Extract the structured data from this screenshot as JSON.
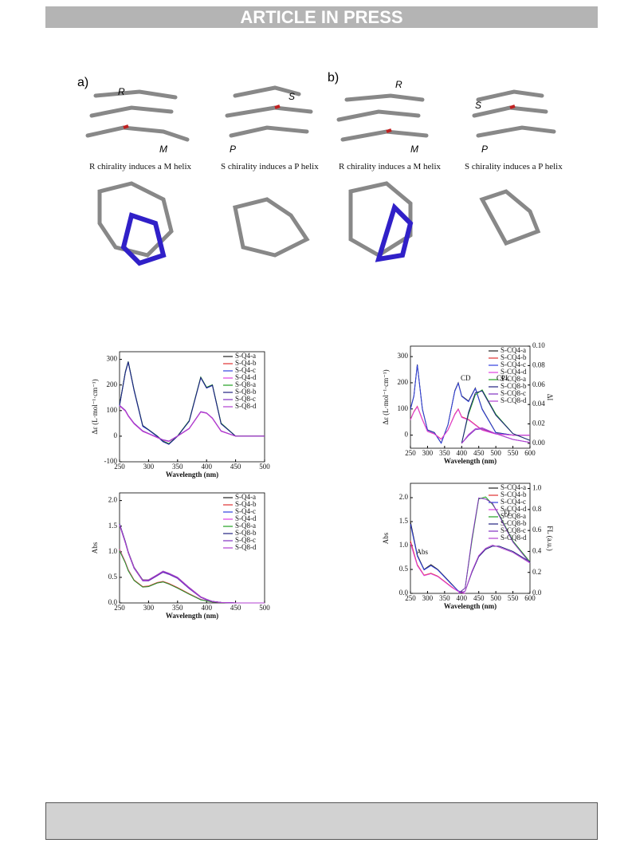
{
  "header": {
    "title": "ARTICLE IN PRESS"
  },
  "figure": {
    "panels": [
      {
        "label": "a)",
        "marks": [
          "R",
          "M",
          "P",
          "S"
        ],
        "captions": [
          "R chirality induces a M helix",
          "S chirality induces a P helix"
        ]
      },
      {
        "label": "b)",
        "marks": [
          "R",
          "M",
          "P",
          "S"
        ],
        "captions": [
          "R chirality induces a M helix",
          "S chirality induces a P helix"
        ]
      }
    ]
  },
  "chart_data": [
    {
      "type": "line",
      "ylabel": "Δε (L·mol⁻¹·cm⁻¹)",
      "xlabel": "Wavelength (nm)",
      "x": [
        250,
        260,
        265,
        275,
        290,
        300,
        315,
        325,
        335,
        350,
        370,
        390,
        400,
        410,
        425,
        450,
        475,
        500
      ],
      "xlim": [
        250,
        500
      ],
      "xticks": [
        250,
        300,
        350,
        400,
        450,
        500
      ],
      "ylim": [
        -100,
        330
      ],
      "yticks": [
        -100,
        0,
        100,
        200,
        300
      ],
      "series": [
        {
          "name": "S-Q4-a",
          "color": "#222222",
          "values": [
            120,
            250,
            290,
            180,
            40,
            25,
            0,
            -20,
            -30,
            0,
            60,
            230,
            190,
            200,
            50,
            0,
            0,
            0
          ]
        },
        {
          "name": "S-Q4-b",
          "color": "#e03030",
          "values": [
            120,
            100,
            80,
            50,
            20,
            10,
            -5,
            -15,
            -20,
            0,
            30,
            95,
            90,
            70,
            20,
            0,
            0,
            0
          ]
        },
        {
          "name": "S-Q4-c",
          "color": "#3040e0",
          "values": [
            118,
            248,
            288,
            178,
            38,
            24,
            -2,
            -22,
            -32,
            0,
            58,
            228,
            188,
            198,
            48,
            0,
            0,
            0
          ]
        },
        {
          "name": "S-Q4-d",
          "color": "#e040e0",
          "values": [
            118,
            98,
            78,
            48,
            18,
            9,
            -6,
            -16,
            -21,
            0,
            29,
            94,
            89,
            69,
            19,
            0,
            0,
            0
          ]
        },
        {
          "name": "S-Q8-a",
          "color": "#20a020",
          "values": [
            122,
            252,
            292,
            182,
            42,
            26,
            1,
            -19,
            -29,
            1,
            61,
            231,
            191,
            201,
            51,
            0,
            0,
            0
          ]
        },
        {
          "name": "S-Q8-b",
          "color": "#202080",
          "values": [
            121,
            251,
            291,
            181,
            41,
            25,
            0,
            -21,
            -31,
            0,
            59,
            229,
            189,
            199,
            49,
            0,
            0,
            0
          ]
        },
        {
          "name": "S-Q8-c",
          "color": "#8030c0",
          "values": [
            121,
            101,
            81,
            51,
            21,
            11,
            -4,
            -14,
            -19,
            1,
            31,
            96,
            91,
            71,
            21,
            0,
            0,
            0
          ]
        },
        {
          "name": "S-Q8-d",
          "color": "#b040d0",
          "values": [
            119,
            99,
            79,
            49,
            19,
            10,
            -5,
            -15,
            -20,
            0,
            30,
            95,
            90,
            70,
            20,
            0,
            0,
            0
          ]
        }
      ]
    },
    {
      "type": "line",
      "ylabel": "Abs",
      "xlabel": "Wavelength (nm)",
      "x": [
        250,
        260,
        265,
        275,
        290,
        300,
        315,
        325,
        335,
        350,
        370,
        390,
        400,
        410,
        425,
        450,
        475,
        500
      ],
      "xlim": [
        250,
        500
      ],
      "xticks": [
        250,
        300,
        350,
        400,
        450,
        500
      ],
      "ylim": [
        0,
        2.15
      ],
      "yticks": [
        {
          "value": 0,
          "label": "0.0"
        },
        {
          "value": 0.5,
          "label": "0.5"
        },
        {
          "value": 1,
          "label": "1.0"
        },
        {
          "value": 1.5,
          "label": "1.5"
        },
        {
          "value": 2,
          "label": "2.0"
        }
      ],
      "series": [
        {
          "name": "S-Q4-a",
          "color": "#222222",
          "values": [
            1.55,
            1.2,
            1.0,
            0.7,
            0.45,
            0.45,
            0.55,
            0.62,
            0.58,
            0.5,
            0.3,
            0.12,
            0.07,
            0.03,
            0.01,
            0,
            0,
            0
          ]
        },
        {
          "name": "S-Q4-b",
          "color": "#e03030",
          "values": [
            1.05,
            0.8,
            0.65,
            0.45,
            0.32,
            0.33,
            0.4,
            0.42,
            0.38,
            0.3,
            0.18,
            0.07,
            0.04,
            0.02,
            0.01,
            0,
            0,
            0
          ]
        },
        {
          "name": "S-Q4-c",
          "color": "#3040e0",
          "values": [
            1.54,
            1.19,
            0.99,
            0.69,
            0.44,
            0.44,
            0.54,
            0.61,
            0.57,
            0.49,
            0.29,
            0.11,
            0.07,
            0.03,
            0.01,
            0,
            0,
            0
          ]
        },
        {
          "name": "S-Q4-d",
          "color": "#e040e0",
          "values": [
            1.04,
            0.79,
            0.64,
            0.44,
            0.31,
            0.32,
            0.39,
            0.41,
            0.37,
            0.29,
            0.17,
            0.07,
            0.04,
            0.02,
            0.01,
            0,
            0,
            0
          ]
        },
        {
          "name": "S-Q8-a",
          "color": "#20a020",
          "values": [
            1.02,
            0.78,
            0.63,
            0.44,
            0.31,
            0.32,
            0.39,
            0.41,
            0.37,
            0.29,
            0.17,
            0.06,
            0.04,
            0.02,
            0.01,
            0,
            0,
            0
          ]
        },
        {
          "name": "S-Q8-b",
          "color": "#202080",
          "values": [
            1.53,
            1.18,
            0.98,
            0.68,
            0.44,
            0.44,
            0.54,
            0.6,
            0.56,
            0.48,
            0.28,
            0.11,
            0.06,
            0.03,
            0.01,
            0,
            0,
            0
          ]
        },
        {
          "name": "S-Q8-c",
          "color": "#8030c0",
          "values": [
            1.52,
            1.17,
            0.98,
            0.68,
            0.43,
            0.43,
            0.53,
            0.6,
            0.56,
            0.48,
            0.28,
            0.11,
            0.06,
            0.03,
            0.01,
            0,
            0,
            0
          ]
        },
        {
          "name": "S-Q8-d",
          "color": "#b040d0",
          "values": [
            1.53,
            1.18,
            0.99,
            0.69,
            0.44,
            0.45,
            0.55,
            0.62,
            0.58,
            0.5,
            0.3,
            0.12,
            0.07,
            0.03,
            0.01,
            0,
            0,
            0
          ]
        }
      ]
    },
    {
      "type": "line",
      "ylabel": "Δε (L·mol⁻¹·cm⁻¹)",
      "y2label": "ΔI",
      "xlabel": "Wavelength (nm)",
      "annotations": [
        "CD",
        "CPL"
      ],
      "x": [
        250,
        260,
        270,
        285,
        300,
        320,
        340,
        360,
        380,
        390,
        400,
        420,
        440,
        460,
        500,
        550,
        600
      ],
      "xlim": [
        250,
        600
      ],
      "xticks": [
        250,
        300,
        350,
        400,
        450,
        500,
        550,
        600
      ],
      "ylim": [
        -50,
        340
      ],
      "yticks": [
        0,
        100,
        200,
        300
      ],
      "y2lim": [
        -0.005,
        0.1
      ],
      "y2ticks": [
        {
          "value": 0,
          "label": "0.00"
        },
        {
          "value": 0.02,
          "label": "0.02"
        },
        {
          "value": 0.04,
          "label": "0.04"
        },
        {
          "value": 0.06,
          "label": "0.06"
        },
        {
          "value": 0.08,
          "label": "0.08"
        },
        {
          "value": 0.1,
          "label": "0.10"
        }
      ],
      "series": [
        {
          "name": "S-CQ4-a",
          "color": "#222222",
          "values": [
            100,
            150,
            270,
            100,
            20,
            10,
            -30,
            40,
            170,
            200,
            150,
            130,
            180,
            100,
            10,
            0,
            0
          ]
        },
        {
          "name": "S-CQ4-b",
          "color": "#e03030",
          "values": [
            60,
            90,
            110,
            60,
            15,
            5,
            -15,
            20,
            80,
            100,
            70,
            60,
            40,
            20,
            5,
            0,
            0
          ]
        },
        {
          "name": "S-CQ4-c",
          "color": "#3040e0",
          "values": [
            98,
            148,
            268,
            98,
            19,
            9,
            -31,
            39,
            168,
            198,
            148,
            128,
            178,
            98,
            9,
            0,
            0
          ]
        },
        {
          "name": "S-CQ4-d",
          "color": "#e040e0",
          "values": [
            58,
            88,
            108,
            58,
            14,
            4,
            -16,
            19,
            78,
            98,
            68,
            58,
            38,
            19,
            4,
            0,
            0
          ]
        },
        {
          "name": "S-CQ8-a",
          "color": "#20a020",
          "axis": "y2",
          "values": [
            null,
            null,
            null,
            null,
            null,
            null,
            null,
            null,
            null,
            null,
            0,
            0.03,
            0.05,
            0.055,
            0.03,
            0.01,
            0.003
          ]
        },
        {
          "name": "S-CQ8-b",
          "color": "#202080",
          "axis": "y2",
          "values": [
            null,
            null,
            null,
            null,
            null,
            null,
            null,
            null,
            null,
            null,
            0,
            0.032,
            0.052,
            0.054,
            0.029,
            0.01,
            0.003
          ]
        },
        {
          "name": "S-CQ8-c",
          "color": "#8030c0",
          "axis": "y2",
          "values": [
            null,
            null,
            null,
            null,
            null,
            null,
            null,
            null,
            null,
            null,
            0,
            0.008,
            0.014,
            0.015,
            0.01,
            0.004,
            0.001
          ]
        },
        {
          "name": "S-CQ8-d",
          "color": "#b040d0",
          "axis": "y2",
          "values": [
            null,
            null,
            null,
            null,
            null,
            null,
            null,
            null,
            null,
            null,
            0,
            0.009,
            0.015,
            0.016,
            0.01,
            0.004,
            0.001
          ]
        }
      ]
    },
    {
      "type": "line",
      "ylabel": "Abs",
      "y2label": "FL (a.u.)",
      "xlabel": "Wavelength (nm)",
      "annotations": [
        "Abs",
        "FL"
      ],
      "x": [
        250,
        270,
        290,
        310,
        330,
        350,
        370,
        390,
        410,
        430,
        450,
        470,
        490,
        510,
        550,
        600
      ],
      "xlim": [
        250,
        600
      ],
      "xticks": [
        250,
        300,
        350,
        400,
        450,
        500,
        550,
        600
      ],
      "ylim": [
        0,
        2.3
      ],
      "yticks": [
        {
          "value": 0,
          "label": "0.0"
        },
        {
          "value": 0.5,
          "label": "0.5"
        },
        {
          "value": 1,
          "label": "1.0"
        },
        {
          "value": 1.5,
          "label": "1.5"
        },
        {
          "value": 2,
          "label": "2.0"
        }
      ],
      "y2lim": [
        0,
        1.05
      ],
      "y2ticks": [
        {
          "value": 0,
          "label": "0.0"
        },
        {
          "value": 0.2,
          "label": "0.2"
        },
        {
          "value": 0.4,
          "label": "0.4"
        },
        {
          "value": 0.6,
          "label": "0.6"
        },
        {
          "value": 0.8,
          "label": "0.8"
        },
        {
          "value": 1,
          "label": "1.0"
        }
      ],
      "series": [
        {
          "name": "S-CQ4-a",
          "color": "#222222",
          "values": [
            1.5,
            0.8,
            0.5,
            0.6,
            0.5,
            0.35,
            0.2,
            0.05,
            0,
            null,
            null,
            null,
            null,
            null,
            null,
            null
          ]
        },
        {
          "name": "S-CQ4-b",
          "color": "#e03030",
          "values": [
            1.1,
            0.6,
            0.38,
            0.42,
            0.36,
            0.25,
            0.14,
            0.04,
            0,
            null,
            null,
            null,
            null,
            null,
            null,
            null
          ]
        },
        {
          "name": "S-CQ4-c",
          "color": "#3040e0",
          "values": [
            1.45,
            0.78,
            0.49,
            0.58,
            0.49,
            0.34,
            0.19,
            0.05,
            0,
            null,
            null,
            null,
            null,
            null,
            null,
            null
          ]
        },
        {
          "name": "S-CQ4-d",
          "color": "#e040e0",
          "values": [
            1.05,
            0.58,
            0.37,
            0.41,
            0.35,
            0.24,
            0.13,
            0.04,
            0,
            null,
            null,
            null,
            null,
            null,
            null,
            null
          ]
        },
        {
          "name": "S-CQ8-a",
          "color": "#20a020",
          "axis": "y2",
          "values": [
            null,
            null,
            null,
            null,
            null,
            null,
            null,
            0,
            0.05,
            0.5,
            0.9,
            0.92,
            0.85,
            0.75,
            0.5,
            0.3
          ]
        },
        {
          "name": "S-CQ8-b",
          "color": "#202080",
          "axis": "y2",
          "values": [
            null,
            null,
            null,
            null,
            null,
            null,
            null,
            0,
            0.02,
            0.2,
            0.35,
            0.42,
            0.45,
            0.45,
            0.4,
            0.3
          ]
        },
        {
          "name": "S-CQ8-c",
          "color": "#8030c0",
          "axis": "y2",
          "values": [
            null,
            null,
            null,
            null,
            null,
            null,
            null,
            0,
            0.05,
            0.52,
            0.91,
            0.9,
            0.86,
            0.74,
            0.49,
            0.29
          ]
        },
        {
          "name": "S-CQ8-d",
          "color": "#b040d0",
          "axis": "y2",
          "values": [
            null,
            null,
            null,
            null,
            null,
            null,
            null,
            0,
            0.02,
            0.21,
            0.36,
            0.43,
            0.46,
            0.44,
            0.39,
            0.29
          ]
        }
      ]
    }
  ]
}
